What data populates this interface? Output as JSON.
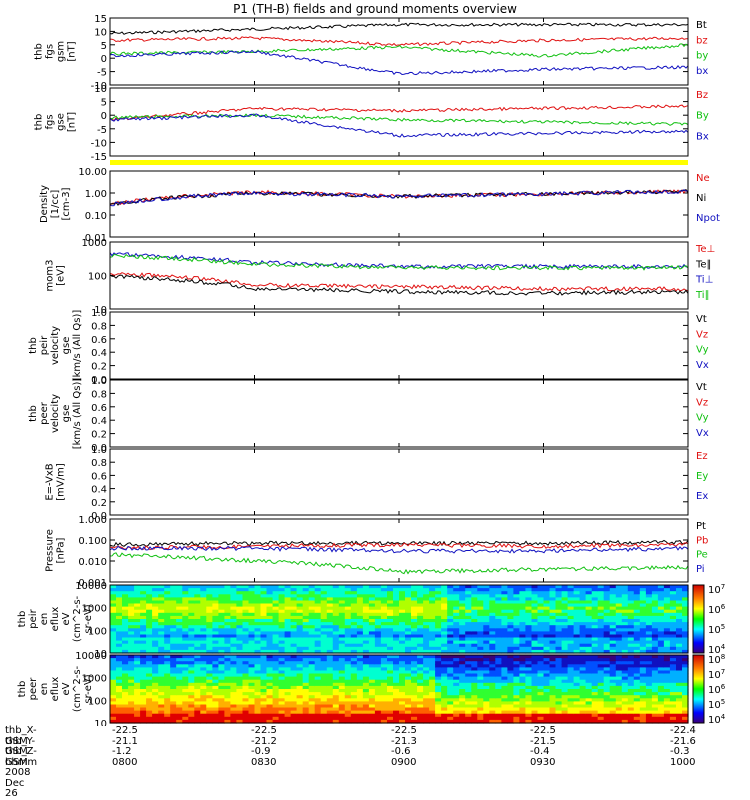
{
  "title": "P1 (TH-B) fields and ground moments overview",
  "x_ticks": [
    "0800",
    "0830",
    "0900",
    "0930",
    "1000"
  ],
  "panels": [
    {
      "id": "fgs_gsm",
      "ylabel": [
        "thb",
        "fgs",
        "gsm",
        "[nT]"
      ],
      "ticks": [
        "15",
        "10",
        "5",
        "0",
        "-5",
        "-10"
      ],
      "legend": [
        {
          "t": "Bt",
          "c": "#000000"
        },
        {
          "t": "bz",
          "c": "#e01010"
        },
        {
          "t": "by",
          "c": "#10c010"
        },
        {
          "t": "bx",
          "c": "#1010c0"
        }
      ]
    },
    {
      "id": "fgs_gse",
      "ylabel": [
        "thb",
        "fgs",
        "gse",
        "[nT]"
      ],
      "ticks": [
        "10",
        "5",
        "0",
        "-5",
        "-10",
        "-15"
      ],
      "legend": [
        {
          "t": "Bz",
          "c": "#e01010"
        },
        {
          "t": "By",
          "c": "#10c010"
        },
        {
          "t": "Bx",
          "c": "#1010c0"
        }
      ]
    },
    {
      "id": "density",
      "ylabel": [
        "Density",
        "[1/cc]",
        "[cm-3]"
      ],
      "ticks": [
        "10.00",
        "1.00",
        "0.10",
        "0.01"
      ],
      "legend": [
        {
          "t": "Ne",
          "c": "#e01010"
        },
        {
          "t": "Ni",
          "c": "#000000"
        },
        {
          "t": "Npot",
          "c": "#1010c0"
        }
      ]
    },
    {
      "id": "temp",
      "ylabel": [
        "mom3",
        "[eV]"
      ],
      "ticks": [
        "1000",
        "100",
        "10"
      ],
      "legend": [
        {
          "t": "Te⊥",
          "c": "#e01010"
        },
        {
          "t": "Te∥",
          "c": "#000000"
        },
        {
          "t": "Ti⊥",
          "c": "#1010c0"
        },
        {
          "t": "Ti∥",
          "c": "#10c010"
        }
      ]
    },
    {
      "id": "peir_vel",
      "ylabel": [
        "thb",
        "peir",
        "velocity",
        "gse",
        "[km/s (All Qs)]"
      ],
      "ticks": [
        "1.0",
        "0.8",
        "0.6",
        "0.4",
        "0.2",
        "0.0"
      ],
      "legend": [
        {
          "t": "Vt",
          "c": "#000000"
        },
        {
          "t": "Vz",
          "c": "#e01010"
        },
        {
          "t": "Vy",
          "c": "#10c010"
        },
        {
          "t": "Vx",
          "c": "#1010c0"
        }
      ]
    },
    {
      "id": "peer_vel",
      "ylabel": [
        "thb",
        "peer",
        "velocity",
        "gse",
        "[km/s (All Qs)]"
      ],
      "ticks": [
        "1.0",
        "0.8",
        "0.6",
        "0.4",
        "0.2",
        "0.0"
      ],
      "legend": [
        {
          "t": "Vt",
          "c": "#000000"
        },
        {
          "t": "Vz",
          "c": "#e01010"
        },
        {
          "t": "Vy",
          "c": "#10c010"
        },
        {
          "t": "Vx",
          "c": "#1010c0"
        }
      ]
    },
    {
      "id": "efield",
      "ylabel": [
        "E=-VxB",
        "[mV/m]"
      ],
      "ticks": [
        "1.0",
        "0.8",
        "0.6",
        "0.4",
        "0.2",
        "0.0"
      ],
      "legend": [
        {
          "t": "Ez",
          "c": "#e01010"
        },
        {
          "t": "Ey",
          "c": "#10c010"
        },
        {
          "t": "Ex",
          "c": "#1010c0"
        }
      ]
    },
    {
      "id": "pressure",
      "ylabel": [
        "Pressure",
        "[nPa]"
      ],
      "ticks": [
        "1.000",
        "0.100",
        "0.010",
        "0.001"
      ],
      "legend": [
        {
          "t": "Pt",
          "c": "#000000"
        },
        {
          "t": "Pb",
          "c": "#e01010"
        },
        {
          "t": "Pe",
          "c": "#10c010"
        },
        {
          "t": "Pi",
          "c": "#1010c0"
        }
      ]
    },
    {
      "id": "peir_spec",
      "ylabel": [
        "thb",
        "peir",
        "en",
        "eflux",
        "eV",
        "(cm^2-s-",
        "sr-eV)"
      ],
      "ticks": [
        "10000",
        "1000",
        "100",
        "10"
      ],
      "cbar_ticks": [
        "10^7",
        "10^6",
        "10^5",
        "10^4"
      ]
    },
    {
      "id": "peer_spec",
      "ylabel": [
        "thb",
        "peer",
        "en",
        "eflux",
        "eV",
        "(cm^2-s-",
        "sr-eV)"
      ],
      "ticks": [
        "10000",
        "1000",
        "100",
        "10"
      ],
      "cbar_ticks": [
        "10^8",
        "10^7",
        "10^6",
        "10^5",
        "10^4"
      ]
    }
  ],
  "footer": {
    "rows": [
      {
        "label": "thb_X-GSM",
        "vals": [
          "-22.5",
          "-22.5",
          "-22.5",
          "-22.5",
          "-22.4"
        ]
      },
      {
        "label": "thb_Y-GSM",
        "vals": [
          "-21.1",
          "-21.2",
          "-21.3",
          "-21.5",
          "-21.6"
        ]
      },
      {
        "label": "thb_Z-GSM",
        "vals": [
          "-1.2",
          "-0.9",
          "-0.6",
          "-0.4",
          "-0.3"
        ]
      },
      {
        "label": "hhmm",
        "vals": [
          "0800",
          "0830",
          "0900",
          "0930",
          "1000"
        ]
      }
    ],
    "date": "2008 Dec 26"
  },
  "chart_data": [
    {
      "type": "line",
      "title": "thb fgs gsm",
      "xlabel": "hhmm",
      "ylabel": "[nT]",
      "ylim": [
        -15,
        15
      ],
      "x": [
        "0800",
        "0830",
        "0900",
        "0930",
        "1000"
      ],
      "series": [
        {
          "name": "Bt",
          "values": [
            8,
            10,
            12,
            12,
            12
          ]
        },
        {
          "name": "bz",
          "values": [
            5,
            6,
            3,
            5,
            6
          ]
        },
        {
          "name": "by",
          "values": [
            -1,
            0,
            2,
            -2,
            3
          ]
        },
        {
          "name": "bx",
          "values": [
            -2,
            0,
            -10,
            -8,
            -7
          ]
        }
      ]
    },
    {
      "type": "line",
      "title": "thb fgs gse",
      "xlabel": "hhmm",
      "ylabel": "[nT]",
      "ylim": [
        -18,
        12
      ],
      "x": [
        "0800",
        "0830",
        "0900",
        "0930",
        "1000"
      ],
      "series": [
        {
          "name": "Bz",
          "values": [
            -2,
            3,
            2,
            3,
            4
          ]
        },
        {
          "name": "By",
          "values": [
            -1,
            0,
            -2,
            -3,
            -4
          ]
        },
        {
          "name": "Bx",
          "values": [
            -2,
            0,
            -9,
            -8,
            -7
          ]
        }
      ]
    },
    {
      "type": "line",
      "title": "Density",
      "ylabel": "[1/cc]",
      "yscale": "log",
      "ylim": [
        0.01,
        10
      ],
      "x": [
        "0800",
        "0830",
        "0900",
        "0930",
        "1000"
      ],
      "series": [
        {
          "name": "Ne",
          "values": [
            0.3,
            1.1,
            0.7,
            0.9,
            1.2
          ]
        },
        {
          "name": "Ni",
          "values": [
            0.3,
            1.0,
            0.7,
            0.9,
            1.2
          ]
        },
        {
          "name": "Npot",
          "values": [
            0.3,
            1.0,
            0.7,
            0.9,
            1.2
          ]
        }
      ]
    },
    {
      "type": "line",
      "title": "mom3",
      "ylabel": "[eV]",
      "yscale": "log",
      "ylim": [
        5,
        5000
      ],
      "x": [
        "0800",
        "0830",
        "0900",
        "0930",
        "1000"
      ],
      "series": [
        {
          "name": "Te⊥",
          "values": [
            200,
            60,
            50,
            40,
            40
          ]
        },
        {
          "name": "Te∥",
          "values": [
            150,
            40,
            30,
            25,
            30
          ]
        },
        {
          "name": "Ti⊥",
          "values": [
            1500,
            600,
            400,
            400,
            400
          ]
        },
        {
          "name": "Ti∥",
          "values": [
            1200,
            500,
            350,
            350,
            350
          ]
        }
      ]
    },
    {
      "type": "line",
      "title": "Pressure",
      "ylabel": "[nPa]",
      "yscale": "log",
      "ylim": [
        0.001,
        1
      ],
      "x": [
        "0800",
        "0830",
        "0900",
        "0930",
        "1000"
      ],
      "series": [
        {
          "name": "Pt",
          "values": [
            0.06,
            0.07,
            0.07,
            0.07,
            0.08
          ]
        },
        {
          "name": "Pb",
          "values": [
            0.04,
            0.05,
            0.06,
            0.05,
            0.06
          ]
        },
        {
          "name": "Pe",
          "values": [
            0.02,
            0.01,
            0.003,
            0.004,
            0.005
          ]
        },
        {
          "name": "Pi",
          "values": [
            0.04,
            0.04,
            0.03,
            0.03,
            0.04
          ]
        }
      ]
    },
    {
      "type": "heatmap",
      "title": "thb peir en eflux",
      "yscale": "log",
      "ylim": [
        10,
        20000
      ],
      "zrange": [
        "10^4",
        "10^7"
      ]
    },
    {
      "type": "heatmap",
      "title": "thb peer en eflux",
      "yscale": "log",
      "ylim": [
        10,
        20000
      ],
      "zrange": [
        "10^4",
        "10^8"
      ]
    }
  ]
}
